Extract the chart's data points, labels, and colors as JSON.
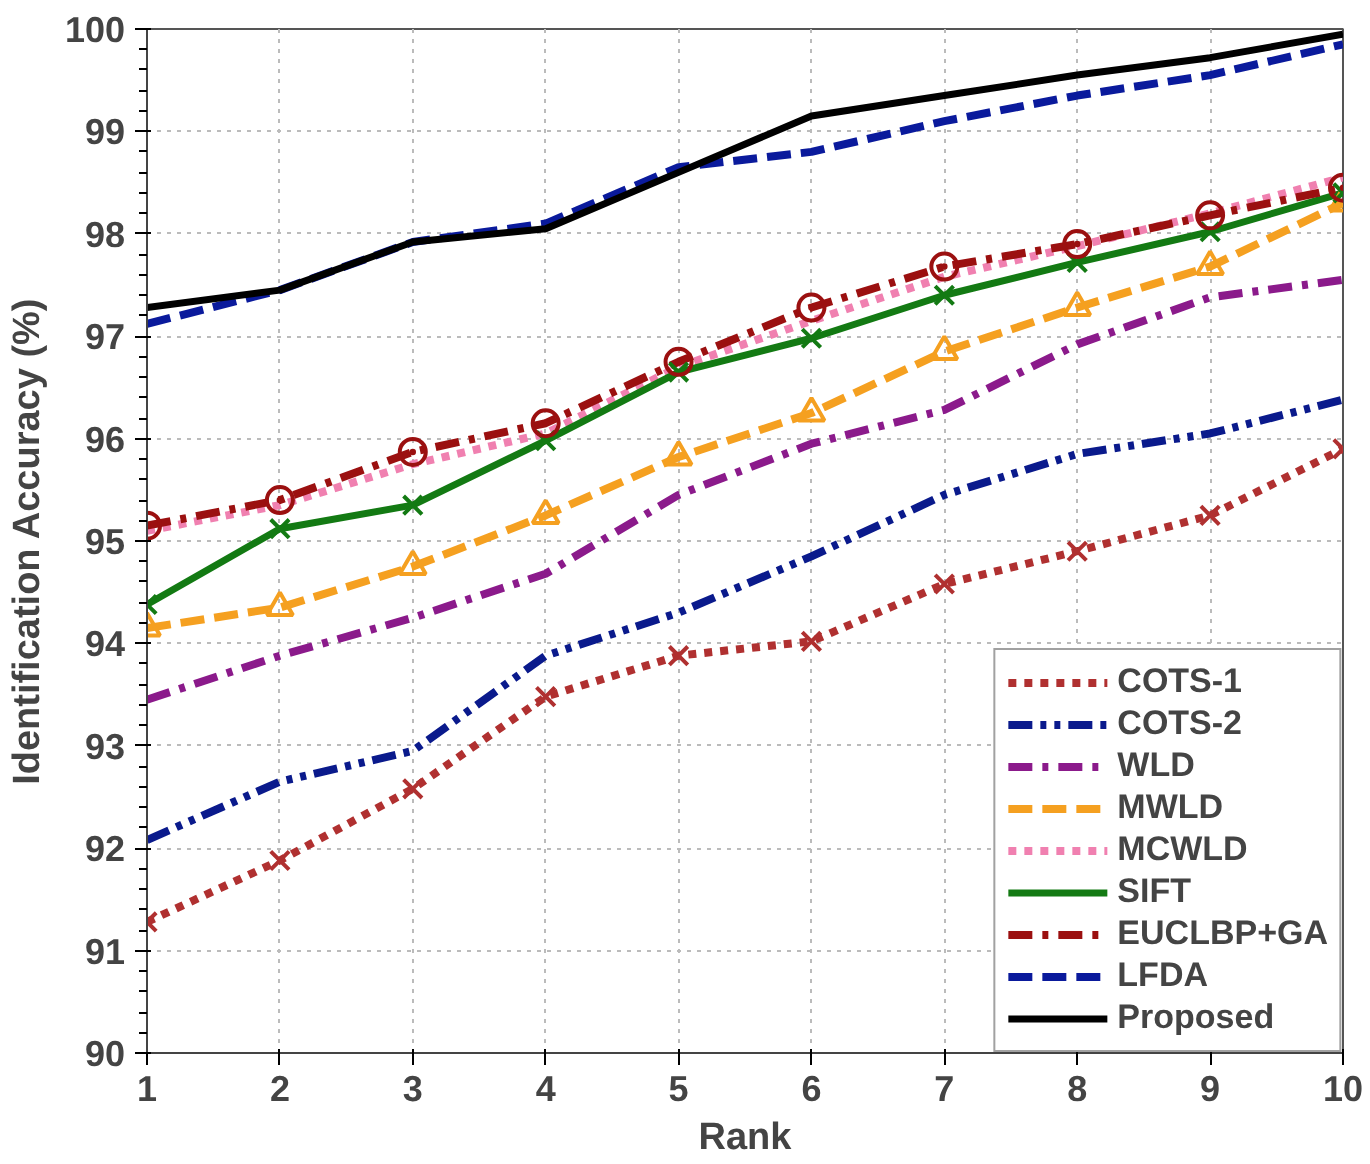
{
  "chart_data": {
    "type": "line",
    "xlabel": "Rank",
    "ylabel": "Identification Accuracy (%)",
    "x": [
      1,
      2,
      3,
      4,
      5,
      6,
      7,
      8,
      9,
      10
    ],
    "xlim": [
      1,
      10
    ],
    "xticks": [
      1,
      2,
      3,
      4,
      5,
      6,
      7,
      8,
      9,
      10
    ],
    "ylim": [
      90,
      100
    ],
    "yticks": [
      90,
      91,
      92,
      93,
      94,
      95,
      96,
      97,
      98,
      99,
      100
    ],
    "grid": true,
    "legend": "bottom right",
    "series": [
      {
        "name": "COTS-1",
        "color": "#b03030",
        "line_style": "dotted",
        "marker": "cross",
        "values": [
          91.28,
          91.88,
          92.58,
          93.48,
          93.88,
          94.02,
          94.58,
          94.9,
          95.25,
          95.9
        ]
      },
      {
        "name": "COTS-2",
        "color": "#0a1a8c",
        "line_style": "dashdotdot",
        "marker": "none",
        "values": [
          92.08,
          92.65,
          92.95,
          93.88,
          94.3,
          94.85,
          95.45,
          95.85,
          96.05,
          96.38
        ]
      },
      {
        "name": "WLD",
        "color": "#8b1a8b",
        "line_style": "dashdot",
        "marker": "none",
        "values": [
          93.45,
          93.88,
          94.25,
          94.68,
          95.45,
          95.95,
          96.28,
          96.92,
          97.38,
          97.55
        ]
      },
      {
        "name": "MWLD",
        "color": "#f5a020",
        "line_style": "dashed",
        "marker": "triangle",
        "values": [
          94.15,
          94.35,
          94.75,
          95.25,
          95.82,
          96.25,
          96.85,
          97.28,
          97.68,
          98.3
        ]
      },
      {
        "name": "MCWLD",
        "color": "#f080b0",
        "line_style": "dotted",
        "marker": "none",
        "values": [
          95.1,
          95.35,
          95.75,
          96.05,
          96.7,
          97.15,
          97.58,
          97.88,
          98.2,
          98.55
        ]
      },
      {
        "name": "SIFT",
        "color": "#137a13",
        "line_style": "solid",
        "marker": "cross",
        "values": [
          94.38,
          95.12,
          95.35,
          95.98,
          96.65,
          96.98,
          97.4,
          97.72,
          98.02,
          98.4
        ]
      },
      {
        "name": "EUCLBP+GA",
        "color": "#9b1010",
        "line_style": "dashdot",
        "marker": "circle",
        "values": [
          95.15,
          95.4,
          95.87,
          96.15,
          96.75,
          97.28,
          97.68,
          97.9,
          98.18,
          98.45
        ]
      },
      {
        "name": "LFDA",
        "color": "#0a1a9c",
        "line_style": "dashed",
        "marker": "none",
        "values": [
          97.12,
          97.45,
          97.92,
          98.1,
          98.65,
          98.8,
          99.1,
          99.35,
          99.55,
          99.85
        ]
      },
      {
        "name": "Proposed",
        "color": "#000000",
        "line_style": "solid",
        "marker": "none",
        "values": [
          97.28,
          97.45,
          97.92,
          98.05,
          98.6,
          99.15,
          99.35,
          99.55,
          99.72,
          99.95
        ]
      }
    ]
  }
}
